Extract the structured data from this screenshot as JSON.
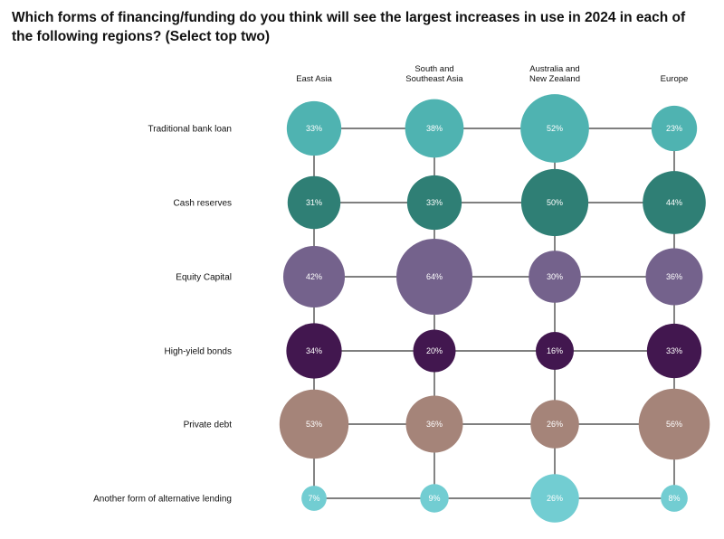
{
  "chart_data": {
    "type": "bubble-matrix",
    "title": "Which forms of financing/funding do you think will see the largest increases in use in 2024 in each of the following regions? (Select top two)",
    "columns": [
      "East Asia",
      "South and\nSoutheast Asia",
      "Australia and\nNew Zealand",
      "Europe"
    ],
    "series": [
      {
        "name": "Traditional bank loan",
        "color": "#4fb3b1",
        "values": [
          33,
          38,
          52,
          23
        ]
      },
      {
        "name": "Cash reserves",
        "color": "#2f7f75",
        "values": [
          31,
          33,
          50,
          44
        ]
      },
      {
        "name": "Equity Capital",
        "color": "#74628c",
        "values": [
          42,
          64,
          30,
          36
        ]
      },
      {
        "name": "High-yield bonds",
        "color": "#42174f",
        "values": [
          34,
          20,
          16,
          33
        ]
      },
      {
        "name": "Private debt",
        "color": "#a58479",
        "values": [
          53,
          36,
          26,
          56
        ]
      },
      {
        "name": "Another form of alternative lending",
        "color": "#72cdd2",
        "values": [
          7,
          9,
          26,
          8
        ]
      }
    ],
    "unit": "%"
  }
}
